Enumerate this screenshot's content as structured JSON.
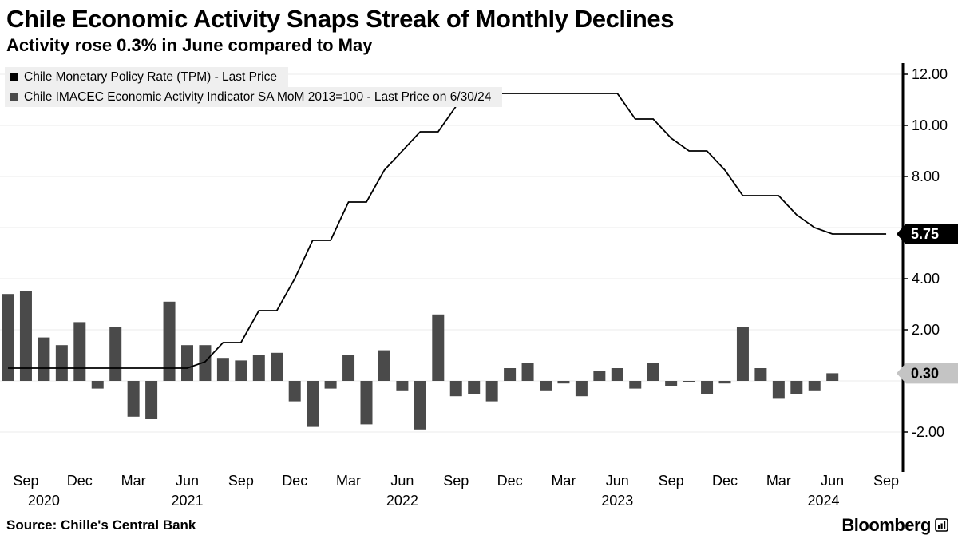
{
  "header": {
    "title": "Chile Economic Activity Snaps Streak of Monthly Declines",
    "subtitle": "Activity rose 0.3% in June compared to May"
  },
  "legend": {
    "items": [
      {
        "label": "Chile Monetary Policy Rate (TPM) - Last Price",
        "color": "#000000"
      },
      {
        "label": "Chile IMACEC Economic Activity Indicator SA MoM 2013=100 - Last Price on 6/30/24",
        "color": "#4a4a4a"
      }
    ]
  },
  "chart_data": {
    "type": "combo",
    "title": "Chile Economic Activity Snaps Streak of Monthly Declines",
    "x_months": [
      "Aug 2020",
      "Sep 2020",
      "Oct 2020",
      "Nov 2020",
      "Dec 2020",
      "Jan 2021",
      "Feb 2021",
      "Mar 2021",
      "Apr 2021",
      "May 2021",
      "Jun 2021",
      "Jul 2021",
      "Aug 2021",
      "Sep 2021",
      "Oct 2021",
      "Nov 2021",
      "Dec 2021",
      "Jan 2022",
      "Feb 2022",
      "Mar 2022",
      "Apr 2022",
      "May 2022",
      "Jun 2022",
      "Jul 2022",
      "Aug 2022",
      "Sep 2022",
      "Oct 2022",
      "Nov 2022",
      "Dec 2022",
      "Jan 2023",
      "Feb 2023",
      "Mar 2023",
      "Apr 2023",
      "May 2023",
      "Jun 2023",
      "Jul 2023",
      "Aug 2023",
      "Sep 2023",
      "Oct 2023",
      "Nov 2023",
      "Dec 2023",
      "Jan 2024",
      "Feb 2024",
      "Mar 2024",
      "Apr 2024",
      "May 2024",
      "Jun 2024",
      "Jul 2024",
      "Aug 2024",
      "Sep 2024"
    ],
    "series": [
      {
        "name": "Chile Monetary Policy Rate (TPM) - Last Price",
        "type": "line",
        "color": "#000000",
        "values": [
          0.5,
          0.5,
          0.5,
          0.5,
          0.5,
          0.5,
          0.5,
          0.5,
          0.5,
          0.5,
          0.5,
          0.75,
          1.5,
          1.5,
          2.75,
          2.75,
          4.0,
          5.5,
          5.5,
          7.0,
          7.0,
          8.25,
          9.0,
          9.75,
          9.75,
          10.75,
          11.25,
          11.25,
          11.25,
          11.25,
          11.25,
          11.25,
          11.25,
          11.25,
          11.25,
          10.25,
          10.25,
          9.5,
          9.0,
          9.0,
          8.25,
          7.25,
          7.25,
          7.25,
          6.5,
          6.0,
          5.75,
          5.75,
          5.75,
          5.75
        ]
      },
      {
        "name": "Chile IMACEC Economic Activity Indicator SA MoM 2013=100 - Last Price on 6/30/24",
        "type": "bar",
        "color": "#4a4a4a",
        "values": [
          3.4,
          3.5,
          1.7,
          1.4,
          2.3,
          -0.3,
          2.1,
          -1.4,
          -1.5,
          3.1,
          1.4,
          1.4,
          0.9,
          0.8,
          1.0,
          1.1,
          -0.8,
          -1.8,
          -0.3,
          1.0,
          -1.7,
          1.2,
          -0.4,
          -1.9,
          2.6,
          -0.6,
          -0.5,
          -0.8,
          0.5,
          0.7,
          -0.4,
          -0.1,
          -0.6,
          0.4,
          0.5,
          -0.3,
          0.7,
          -0.2,
          -0.05,
          -0.5,
          -0.1,
          2.1,
          0.5,
          -0.7,
          -0.5,
          -0.4,
          0.3
        ]
      }
    ],
    "y_axis": {
      "ylim": [
        -3.3,
        12.4
      ],
      "grid_values": [
        -2,
        0,
        2,
        4,
        6,
        8,
        10,
        12
      ],
      "ticks": [
        {
          "value": 12,
          "label": "12.00"
        },
        {
          "value": 10,
          "label": "10.00"
        },
        {
          "value": 8,
          "label": "8.00"
        },
        {
          "value": 4,
          "label": "4.00"
        },
        {
          "value": 2,
          "label": "2.00"
        },
        {
          "value": -2,
          "label": "-2.00"
        }
      ]
    },
    "x_ticks": [
      {
        "label": "Sep",
        "month_index": 1
      },
      {
        "label": "Dec",
        "month_index": 4
      },
      {
        "label": "Mar",
        "month_index": 7
      },
      {
        "label": "Jun",
        "month_index": 10
      },
      {
        "label": "Sep",
        "month_index": 13
      },
      {
        "label": "Dec",
        "month_index": 16
      },
      {
        "label": "Mar",
        "month_index": 19
      },
      {
        "label": "Jun",
        "month_index": 22
      },
      {
        "label": "Sep",
        "month_index": 25
      },
      {
        "label": "Dec",
        "month_index": 28
      },
      {
        "label": "Mar",
        "month_index": 31
      },
      {
        "label": "Jun",
        "month_index": 34
      },
      {
        "label": "Sep",
        "month_index": 37
      },
      {
        "label": "Dec",
        "month_index": 40
      },
      {
        "label": "Mar",
        "month_index": 43
      },
      {
        "label": "Jun",
        "month_index": 46
      },
      {
        "label": "Sep",
        "month_index": 49
      }
    ],
    "year_labels": [
      {
        "label": "2020",
        "month_index": 2
      },
      {
        "label": "2021",
        "month_index": 10
      },
      {
        "label": "2022",
        "month_index": 22
      },
      {
        "label": "2023",
        "month_index": 34
      },
      {
        "label": "2024",
        "month_index": 45.5
      }
    ],
    "last_price_badges": [
      {
        "value": "5.75",
        "y_value": 5.75,
        "bg": "#000000",
        "fg": "#ffffff"
      },
      {
        "value": "0.30",
        "y_value": 0.3,
        "bg": "#c4c4c4",
        "fg": "#000000"
      }
    ],
    "grid": true,
    "legend_position": "top-left"
  },
  "footer": {
    "source": "Source: Chille's Central Bank",
    "brand": "Bloomberg"
  }
}
